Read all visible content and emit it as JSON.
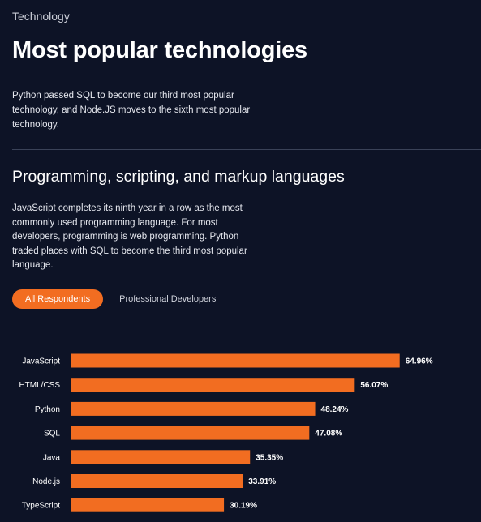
{
  "header": {
    "section_label": "Technology",
    "title": "Most popular technologies",
    "intro": "Python passed SQL to become our third most popular technology, and Node.JS moves to the sixth most popular technology."
  },
  "subsection": {
    "title": "Programming, scripting, and markup languages",
    "description": "JavaScript completes its ninth year in a row as the most commonly used programming language. For most developers, programming is web programming. Python traded places with SQL to become the third most popular language."
  },
  "tabs": [
    {
      "label": "All Respondents",
      "active": true
    },
    {
      "label": "Professional Developers",
      "active": false
    }
  ],
  "colors": {
    "background": "#0d1326",
    "accent": "#f26d21",
    "bar": "#f26d21"
  },
  "chart_data": {
    "type": "bar",
    "orientation": "horizontal",
    "categories": [
      "JavaScript",
      "HTML/CSS",
      "Python",
      "SQL",
      "Java",
      "Node.js",
      "TypeScript"
    ],
    "values": [
      64.96,
      56.07,
      48.24,
      47.08,
      35.35,
      33.91,
      30.19
    ],
    "value_labels": [
      "64.96%",
      "56.07%",
      "48.24%",
      "47.08%",
      "35.35%",
      "33.91%",
      "30.19%"
    ],
    "xlim": [
      0,
      100
    ],
    "grid": false,
    "title": "",
    "xlabel": "",
    "ylabel": ""
  }
}
